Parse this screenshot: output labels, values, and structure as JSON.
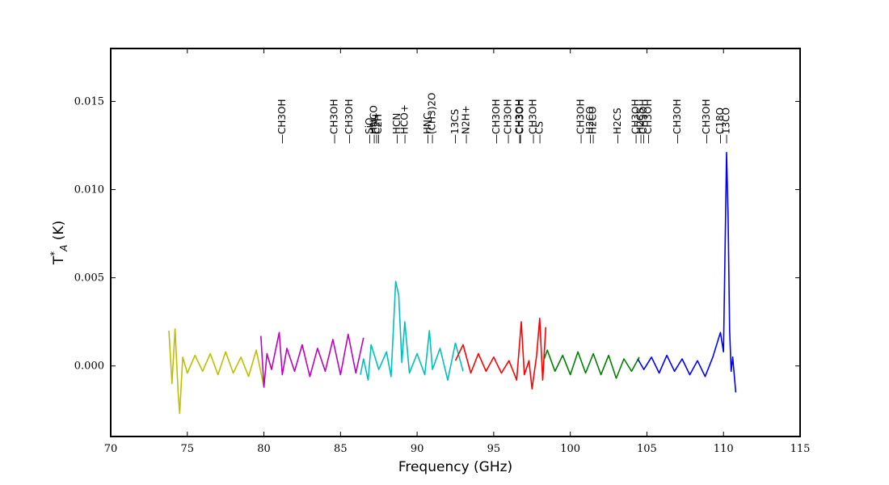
{
  "chart_data": {
    "type": "line",
    "title": "",
    "xlabel": "Frequency (GHz)",
    "ylabel": "T*A (K)",
    "ylabel_main": "T",
    "ylabel_sup": "*",
    "ylabel_sub": "A",
    "ylabel_unit": " (K)",
    "xlim": [
      70,
      115
    ],
    "ylim": [
      -0.004,
      0.018
    ],
    "xticks": [
      70,
      75,
      80,
      85,
      90,
      95,
      100,
      105,
      110,
      115
    ],
    "xtick_labels": [
      "70",
      "75",
      "80",
      "85",
      "90",
      "95",
      "100",
      "105",
      "110",
      "115"
    ],
    "yticks": [
      0.0,
      0.005,
      0.01,
      0.015
    ],
    "ytick_labels": [
      "0.000",
      "0.005",
      "0.010",
      "0.015"
    ],
    "grid": false,
    "legend": "none",
    "series": [
      {
        "color": "#bfbf00",
        "x": [
          73.8,
          74.0,
          74.2,
          74.4,
          74.5,
          74.7,
          75.0,
          75.5,
          76.0,
          76.5,
          77.0,
          77.5,
          78.0,
          78.5,
          79.0,
          79.5,
          80.0
        ],
        "y": [
          0.002,
          -0.001,
          0.0021,
          -0.0015,
          -0.0027,
          0.0005,
          -0.0004,
          0.0006,
          -0.0003,
          0.0007,
          -0.0005,
          0.0008,
          -0.0004,
          0.0005,
          -0.0006,
          0.0009,
          -0.0012
        ]
      },
      {
        "color": "#bf00bf",
        "x": [
          79.8,
          80.0,
          80.2,
          80.5,
          81.0,
          81.2,
          81.5,
          82.0,
          82.5,
          83.0,
          83.5,
          84.0,
          84.5,
          85.0,
          85.5,
          86.0,
          86.5
        ],
        "y": [
          0.0017,
          -0.0012,
          0.0007,
          -0.0002,
          0.0019,
          -0.0005,
          0.001,
          -0.0003,
          0.0012,
          -0.0006,
          0.001,
          -0.0003,
          0.0015,
          -0.0005,
          0.0018,
          -0.0004,
          0.0016
        ]
      },
      {
        "color": "#00bfbf",
        "x": [
          86.3,
          86.5,
          86.8,
          87.0,
          87.5,
          88.0,
          88.3,
          88.6,
          88.8,
          89.0,
          89.2,
          89.5,
          90.0,
          90.5,
          90.8,
          91.0,
          91.5,
          92.0,
          92.5,
          93.0
        ],
        "y": [
          -0.0005,
          0.0004,
          -0.0008,
          0.0012,
          -0.0002,
          0.0008,
          -0.0006,
          0.0048,
          0.004,
          0.0002,
          0.0025,
          -0.0004,
          0.0007,
          -0.0005,
          0.002,
          -0.0002,
          0.001,
          -0.0008,
          0.0013,
          -0.0003
        ]
      },
      {
        "color": "#ff0000",
        "x": [
          92.5,
          93.0,
          93.5,
          94.0,
          94.5,
          95.0,
          95.5,
          96.0,
          96.5,
          96.8,
          97.0,
          97.3,
          97.5,
          97.8,
          98.0,
          98.2,
          98.4
        ],
        "y": [
          0.0003,
          0.0012,
          -0.0004,
          0.0007,
          -0.0003,
          0.0005,
          -0.0004,
          0.0003,
          -0.0008,
          0.0025,
          -0.0005,
          0.0003,
          -0.0013,
          0.0006,
          0.0027,
          -0.0008,
          0.0022
        ]
      },
      {
        "color": "#008000",
        "x": [
          98.3,
          98.5,
          99.0,
          99.5,
          100.0,
          100.5,
          101.0,
          101.5,
          102.0,
          102.5,
          103.0,
          103.5,
          104.0,
          104.5
        ],
        "y": [
          0.0004,
          0.0009,
          -0.0003,
          0.0006,
          -0.0005,
          0.0008,
          -0.0004,
          0.0007,
          -0.0005,
          0.0006,
          -0.0007,
          0.0004,
          -0.0003,
          0.0005
        ]
      },
      {
        "color": "#0000ff",
        "x": [
          104.4,
          104.8,
          105.3,
          105.8,
          106.3,
          106.8,
          107.3,
          107.8,
          108.3,
          108.8,
          109.3,
          109.8,
          110.0,
          110.2,
          110.3,
          110.4,
          110.5,
          110.6,
          110.8
        ],
        "y": [
          0.0004,
          -0.0002,
          0.0005,
          -0.0004,
          0.0006,
          -0.0003,
          0.0004,
          -0.0005,
          0.0003,
          -0.0006,
          0.0005,
          0.0019,
          0.0008,
          0.0121,
          0.0085,
          0.002,
          -0.0003,
          0.0005,
          -0.0015
        ]
      }
    ],
    "line_labels": [
      {
        "text": "—CH3OH",
        "x": 81.2
      },
      {
        "text": "—CH3OH",
        "x": 84.6
      },
      {
        "text": "—CH3OH",
        "x": 85.6
      },
      {
        "text": "—SiO",
        "x": 86.9
      },
      {
        "text": "—HNCO",
        "x": 87.2
      },
      {
        "text": "—C2H",
        "x": 87.35
      },
      {
        "text": "—C2H",
        "x": 87.5
      },
      {
        "text": "—HCN",
        "x": 88.7
      },
      {
        "text": "—HCO+",
        "x": 89.2
      },
      {
        "text": "—HNC",
        "x": 90.7
      },
      {
        "text": "—(CH3)2O",
        "x": 91.0
      },
      {
        "text": "—13CS",
        "x": 92.5
      },
      {
        "text": "—N2H+",
        "x": 93.2
      },
      {
        "text": "—CH3OH",
        "x": 95.2
      },
      {
        "text": "—CH3OH",
        "x": 95.95
      },
      {
        "text": "—CH3OH",
        "x": 96.7
      },
      {
        "text": "—CH3OH",
        "x": 96.75
      },
      {
        "text": "—CH3OH",
        "x": 97.6
      },
      {
        "text": "—CS",
        "x": 98.0
      },
      {
        "text": "—CH3OH",
        "x": 100.7
      },
      {
        "text": "—H2CO",
        "x": 101.3
      },
      {
        "text": "—H2CO",
        "x": 101.5
      },
      {
        "text": "—H2CS",
        "x": 103.1
      },
      {
        "text": "—CH3OH",
        "x": 104.3
      },
      {
        "text": "—H2CS",
        "x": 104.6
      },
      {
        "text": "—CH3OH",
        "x": 104.8
      },
      {
        "text": "—CH3OH",
        "x": 105.1
      },
      {
        "text": "—CH3OH",
        "x": 107.0
      },
      {
        "text": "—CH3OH",
        "x": 108.9
      },
      {
        "text": "—C18O",
        "x": 109.8
      },
      {
        "text": "—13CO",
        "x": 110.2
      }
    ]
  }
}
